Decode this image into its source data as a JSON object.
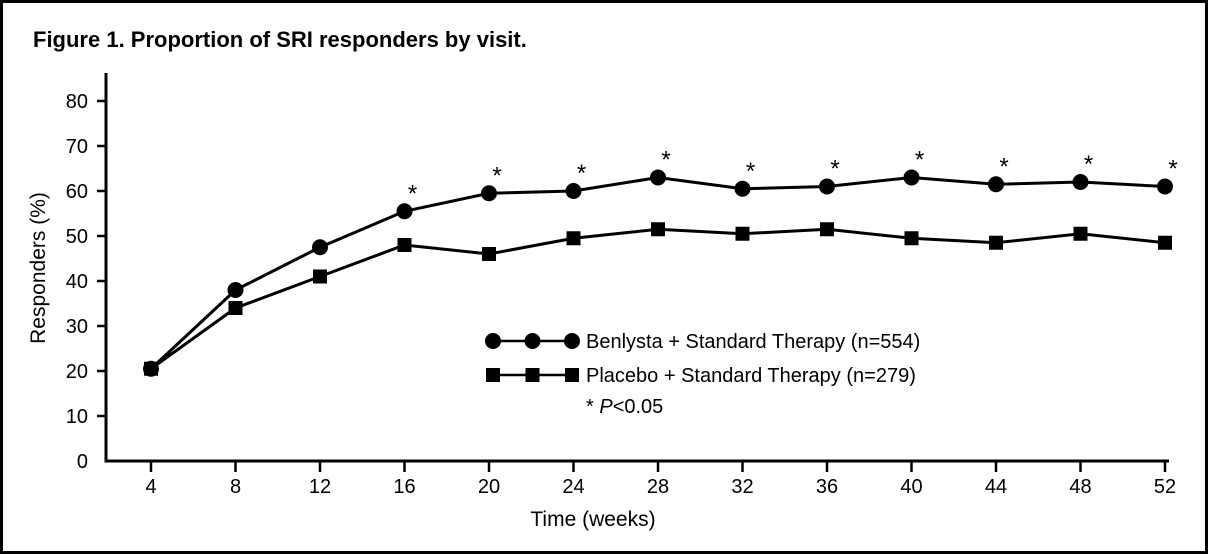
{
  "figure": {
    "title": "Figure 1. Proportion of SRI responders by visit."
  },
  "chart_data": {
    "type": "line",
    "title": "Figure 1. Proportion of SRI responders by visit.",
    "xlabel": "Time (weeks)",
    "ylabel": "Responders (%)",
    "x": [
      4,
      8,
      12,
      16,
      20,
      24,
      28,
      32,
      36,
      40,
      44,
      48,
      52
    ],
    "xticks": [
      4,
      8,
      12,
      16,
      20,
      24,
      28,
      32,
      36,
      40,
      44,
      48,
      52
    ],
    "yticks": [
      0,
      10,
      20,
      30,
      40,
      50,
      60,
      70,
      80
    ],
    "ylim": [
      0,
      86
    ],
    "grid": false,
    "legend_position": "inside-lower-center",
    "series": [
      {
        "name": "Benlysta + Standard Therapy (n=554)",
        "marker": "circle",
        "color": "#000000",
        "values": [
          20.5,
          38,
          47.5,
          55.5,
          59.5,
          60,
          63,
          60.5,
          61,
          63,
          61.5,
          62,
          61
        ]
      },
      {
        "name": "Placebo + Standard Therapy (n=279)",
        "marker": "square",
        "color": "#000000",
        "values": [
          20.5,
          34,
          41,
          48,
          46,
          49.5,
          51.5,
          50.5,
          51.5,
          49.5,
          48.5,
          50.5,
          48.5
        ]
      }
    ],
    "significance": {
      "symbol": "*",
      "weeks": [
        16,
        20,
        24,
        28,
        32,
        36,
        40,
        44,
        48,
        52
      ],
      "note_symbol": "*",
      "note_variable": "P",
      "note_rest": "<0.05"
    },
    "colors": {
      "foreground": "#000000",
      "background": "#ffffff"
    }
  }
}
